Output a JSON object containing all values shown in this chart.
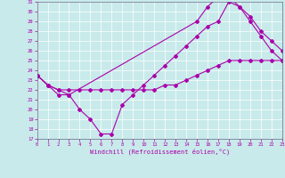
{
  "xlabel": "Windchill (Refroidissement éolien,°C)",
  "bg_color": "#c8eaea",
  "line_color": "#aa00aa",
  "grid_color": "#ffffff",
  "spine_color": "#666688",
  "xmin": 0,
  "xmax": 23,
  "ymin": 17,
  "ymax": 31,
  "line1_x": [
    0,
    1,
    2,
    3,
    4,
    5,
    6,
    7,
    8,
    9,
    10,
    11,
    12,
    13,
    14,
    15,
    16,
    17,
    18,
    19,
    20,
    21,
    22,
    23
  ],
  "line1_y": [
    23.5,
    22.5,
    21.5,
    21.5,
    20.0,
    19.0,
    17.5,
    17.5,
    20.5,
    21.5,
    22.5,
    23.5,
    24.5,
    25.5,
    26.5,
    27.5,
    28.5,
    29.0,
    31.0,
    30.5,
    29.0,
    27.5,
    26.0,
    25.0
  ],
  "line2_x": [
    0,
    1,
    2,
    3,
    4,
    5,
    6,
    7,
    8,
    9,
    10,
    11,
    12,
    13,
    14,
    15,
    16,
    17,
    18,
    19,
    20,
    21,
    22,
    23
  ],
  "line2_y": [
    23.5,
    22.5,
    22.0,
    22.0,
    22.0,
    22.0,
    22.0,
    22.0,
    22.0,
    22.0,
    22.0,
    22.0,
    22.5,
    22.5,
    23.0,
    23.5,
    24.0,
    24.5,
    25.0,
    25.0,
    25.0,
    25.0,
    25.0,
    25.0
  ],
  "line3_x": [
    0,
    1,
    2,
    3,
    15,
    16,
    17,
    18,
    19,
    20,
    21,
    22,
    23
  ],
  "line3_y": [
    23.5,
    22.5,
    22.0,
    21.5,
    29.0,
    30.5,
    31.5,
    31.5,
    30.5,
    29.5,
    28.0,
    27.0,
    26.0
  ]
}
